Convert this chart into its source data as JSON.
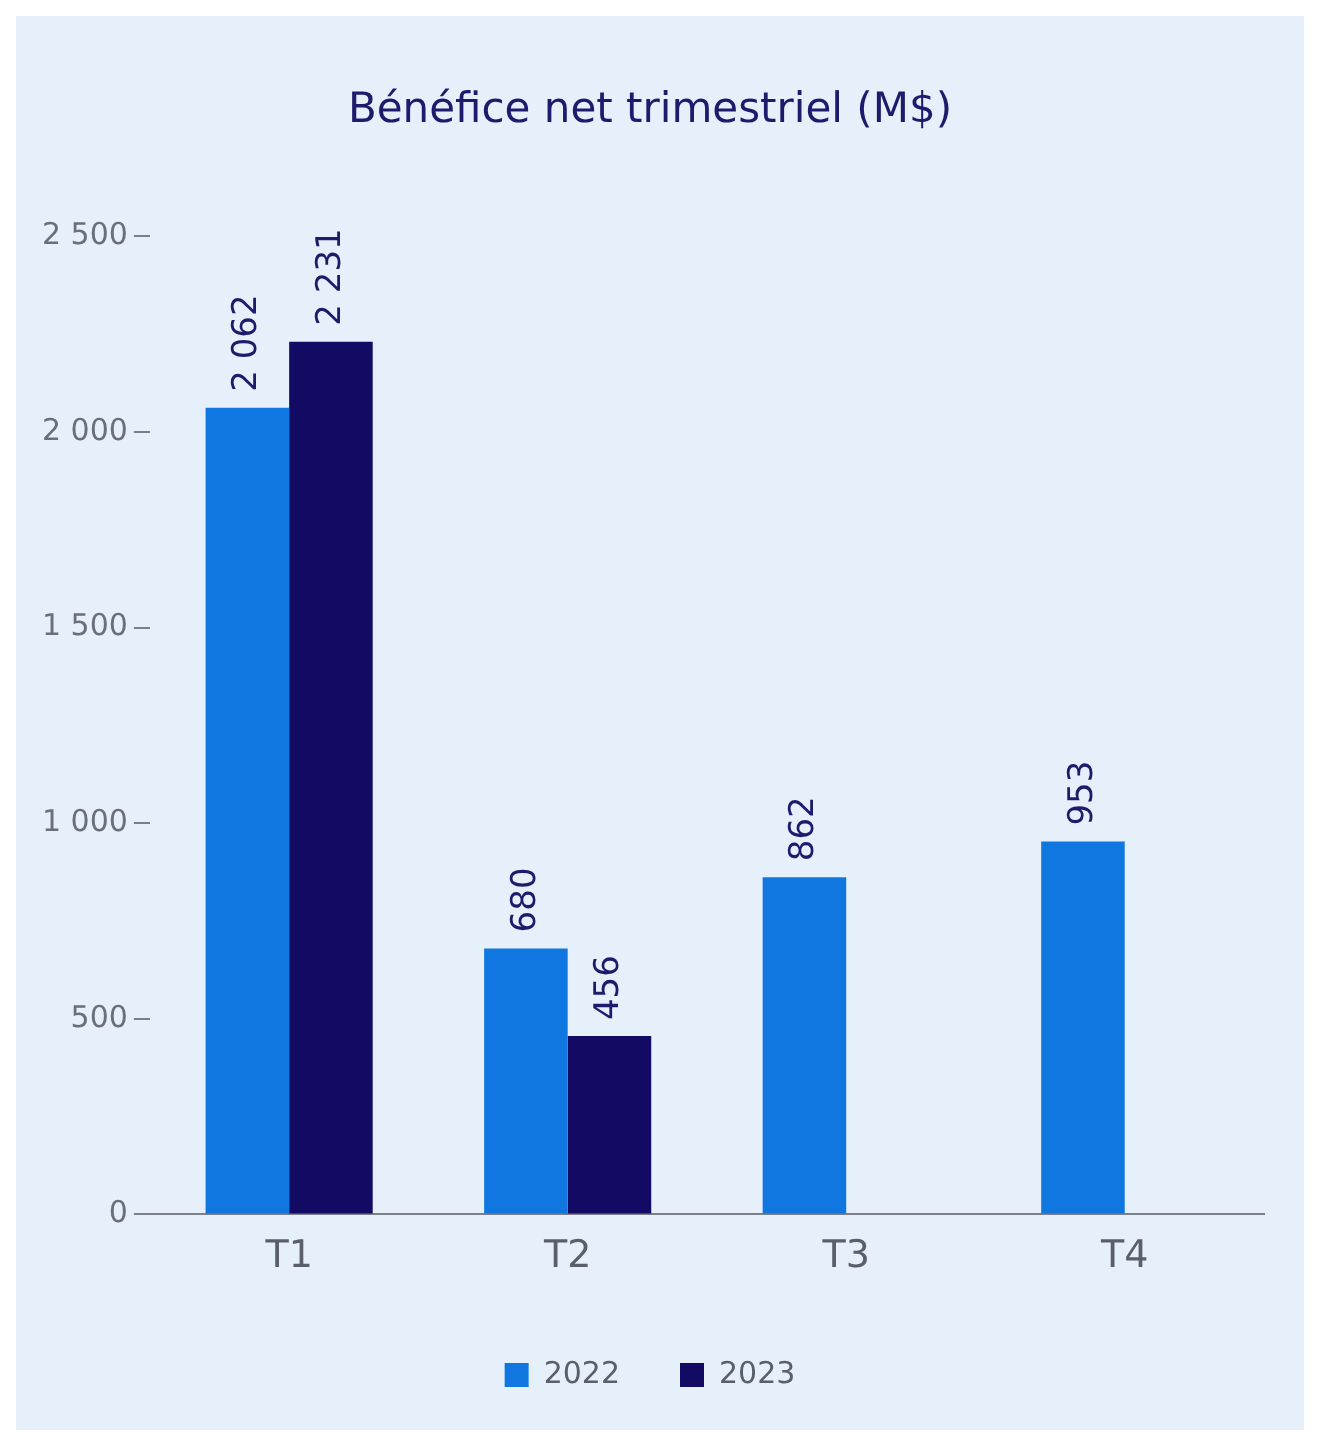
{
  "chart_data": {
    "type": "bar",
    "title": "Bénéfice net trimestriel (M$)",
    "categories": [
      "T1",
      "T2",
      "T3",
      "T4"
    ],
    "series": [
      {
        "name": "2022",
        "color": "#1177e0",
        "values": [
          2062,
          680,
          862,
          953
        ],
        "value_labels": [
          "2 062",
          "680",
          "862",
          "953"
        ]
      },
      {
        "name": "2023",
        "color": "#120a63",
        "values": [
          2231,
          456,
          null,
          null
        ],
        "value_labels": [
          "2 231",
          "456",
          null,
          null
        ]
      }
    ],
    "ylim": [
      0,
      2500
    ],
    "yticks": [
      {
        "value": 0,
        "label": "0"
      },
      {
        "value": 500,
        "label": "500"
      },
      {
        "value": 1000,
        "label": "1 000"
      },
      {
        "value": 1500,
        "label": "1 500"
      },
      {
        "value": 2000,
        "label": "2 000"
      },
      {
        "value": 2500,
        "label": "2 500"
      }
    ],
    "grid": false,
    "legend": "bottom"
  }
}
